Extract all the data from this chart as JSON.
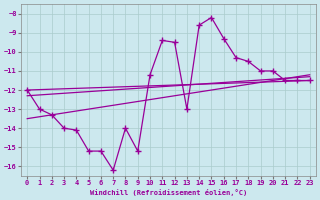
{
  "xlabel": "Windchill (Refroidissement éolien,°C)",
  "background_color": "#cce8ee",
  "grid_color": "#aacccc",
  "line_color": "#990099",
  "xlim": [
    -0.5,
    23.5
  ],
  "ylim": [
    -16.5,
    -7.5
  ],
  "yticks": [
    -16,
    -15,
    -14,
    -13,
    -12,
    -11,
    -10,
    -9,
    -8
  ],
  "xticks": [
    0,
    1,
    2,
    3,
    4,
    5,
    6,
    7,
    8,
    9,
    10,
    11,
    12,
    13,
    14,
    15,
    16,
    17,
    18,
    19,
    20,
    21,
    22,
    23
  ],
  "main_series": {
    "x": [
      0,
      1,
      2,
      3,
      4,
      5,
      6,
      7,
      8,
      9,
      10,
      11,
      12,
      13,
      14,
      15,
      16,
      17,
      18,
      19,
      20,
      21,
      22,
      23
    ],
    "y": [
      -12.0,
      -13.0,
      -13.3,
      -14.0,
      -14.1,
      -15.2,
      -15.2,
      -16.2,
      -14.0,
      -15.2,
      -11.2,
      -9.4,
      -9.5,
      -13.0,
      -8.6,
      -8.2,
      -9.3,
      -10.3,
      -10.5,
      -11.0,
      -11.0,
      -11.5,
      -11.5,
      -11.5
    ]
  },
  "reg_lines": [
    {
      "x": [
        0,
        23
      ],
      "y": [
        -12.0,
        -11.5
      ]
    },
    {
      "x": [
        0,
        23
      ],
      "y": [
        -12.3,
        -11.3
      ]
    },
    {
      "x": [
        0,
        23
      ],
      "y": [
        -13.5,
        -11.2
      ]
    }
  ]
}
